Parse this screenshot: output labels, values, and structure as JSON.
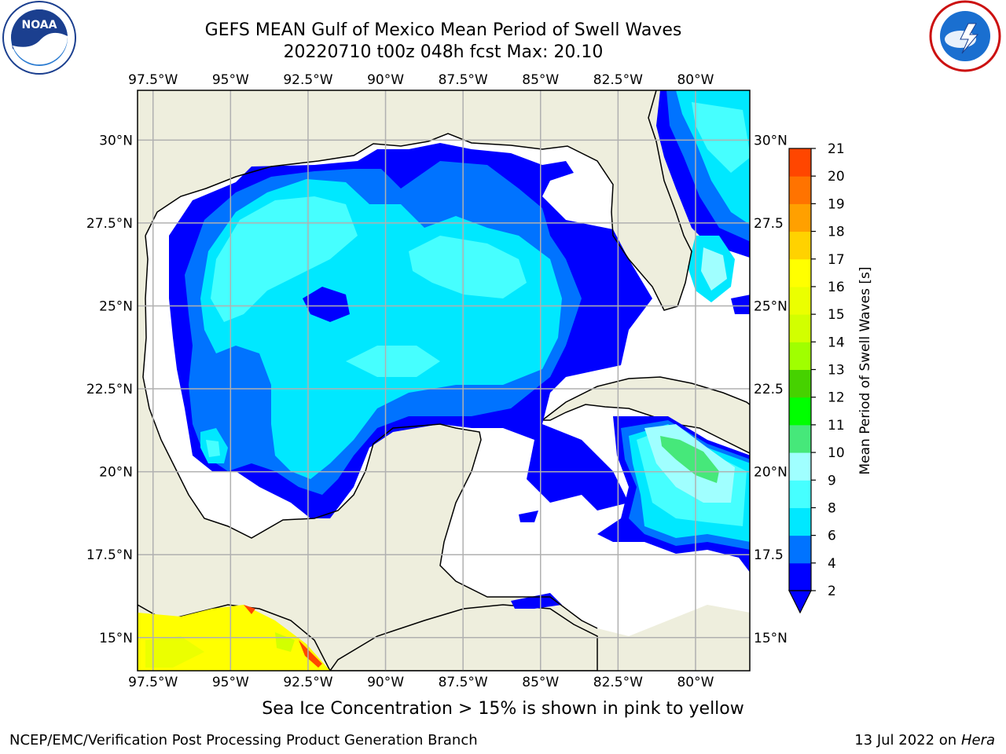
{
  "title": {
    "line1": "GEFS MEAN Gulf of Mexico Mean Period of Swell Waves",
    "line2": "20220710 t00z 048h fcst   Max: 20.10"
  },
  "logos": {
    "left": {
      "name": "noaa-logo",
      "text": "NOAA",
      "ring_text": "NATIONAL OCEANIC AND ATMOSPHERIC ADMINISTRATION · U.S. DEPARTMENT OF COMMERCE"
    },
    "right": {
      "name": "nws-logo",
      "ring_text": "NATIONAL WEATHER SERVICE"
    }
  },
  "map": {
    "lon_ticks": [
      "97.5°W",
      "95°W",
      "92.5°W",
      "90°W",
      "87.5°W",
      "85°W",
      "82.5°W",
      "80°W"
    ],
    "lon_values": [
      -97.5,
      -95,
      -92.5,
      -90,
      -87.5,
      -85,
      -82.5,
      -80
    ],
    "lat_ticks_left": [
      "30°N",
      "27.5°N",
      "25°N",
      "22.5°N",
      "20°N",
      "17.5°N",
      "15°N"
    ],
    "lat_ticks_right": [
      "30°N",
      "27.5",
      "25°N",
      "22.5",
      "20°N",
      "17.5",
      "15°N"
    ],
    "lat_values": [
      30,
      27.5,
      25,
      22.5,
      20,
      17.5,
      15
    ],
    "lon_range": [
      -98,
      -78.25
    ],
    "lat_range": [
      14,
      31.5
    ],
    "grid": true,
    "colors": {
      "land": "#eeeedd",
      "ocean_nodata": "#ffffff",
      "grid": "#b0b0b0",
      "coast": "#000000"
    }
  },
  "colorbar": {
    "label": "Mean Period of Swell Waves [s]",
    "levels": [
      2,
      4,
      6,
      8,
      9,
      10,
      11,
      12,
      13,
      14,
      15,
      16,
      17,
      18,
      19,
      20,
      21
    ],
    "colors": [
      "#0000ff",
      "#0073ff",
      "#00e8ff",
      "#46ffff",
      "#a0ffff",
      "#46e87a",
      "#00ff00",
      "#46d200",
      "#a0ff00",
      "#d2ff00",
      "#ebff00",
      "#ffff00",
      "#ffd200",
      "#ffa000",
      "#ff7300",
      "#ff4600",
      "#ff0000"
    ],
    "extend_color": "#0000ff"
  },
  "footer": {
    "subtitle": "Sea Ice Concentration > 15% is shown in pink to yellow",
    "left": "NCEP/EMC/Verification Post Processing Product Generation Branch",
    "right_date": "13 Jul 2022 on ",
    "right_host": "Hera"
  }
}
